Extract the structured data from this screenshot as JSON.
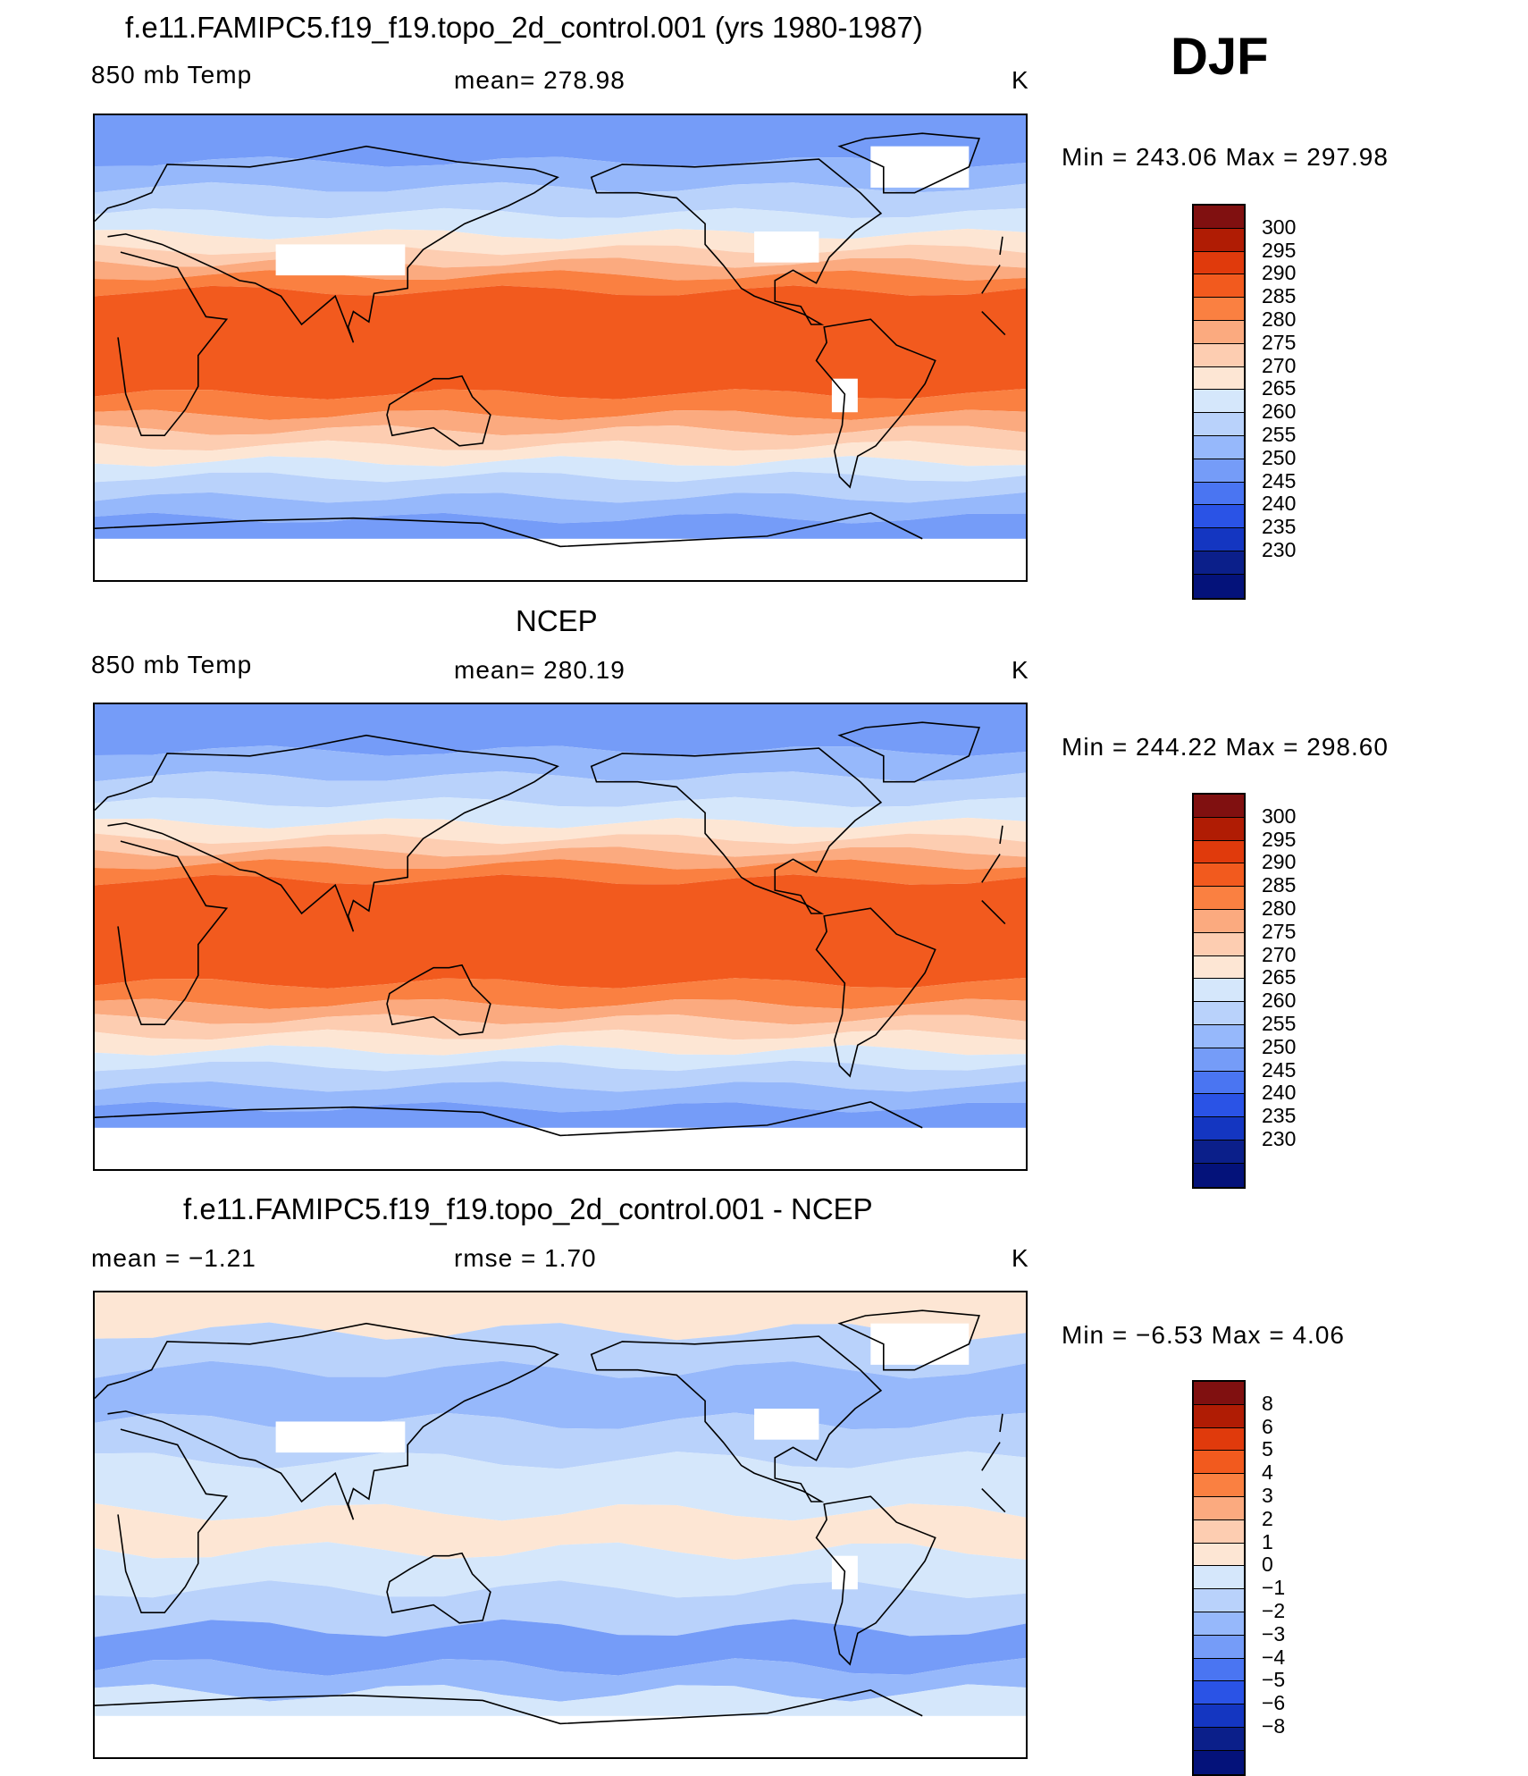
{
  "season": "DJF",
  "colors": {
    "abs": [
      "#801010",
      "#b01c04",
      "#e03a0c",
      "#f25a1e",
      "#fa8041",
      "#fbaa7f",
      "#fdcdb1",
      "#fde6d4",
      "#d5e7fb",
      "#b9d2fb",
      "#96b8fb",
      "#759cf8",
      "#4a75f2",
      "#2a53e6",
      "#1436c1",
      "#0b1f8a",
      "#04127a"
    ],
    "diff": [
      "#801010",
      "#b01c04",
      "#e03a0c",
      "#f25a1e",
      "#fa8041",
      "#fbaa7f",
      "#fdcdb1",
      "#fde6d4",
      "#d5e7fb",
      "#b9d2fb",
      "#96b8fb",
      "#759cf8",
      "#4a75f2",
      "#2a53e6",
      "#1436c1",
      "#0b1f8a",
      "#04127a"
    ]
  },
  "panels": [
    {
      "title": "f.e11.FAMIPC5.f19_f19.topo_2d_control.001 (yrs 1980-1987)",
      "left_label": "850 mb Temp",
      "stat_label": "mean=  278.98",
      "units": "K",
      "minmax": "Min  =  243.06  Max  =  297.98",
      "colorbar": "abs",
      "has_missing": true
    },
    {
      "title": "NCEP",
      "left_label": "850 mb Temp",
      "stat_label": "mean=  280.19",
      "units": "K",
      "minmax": "Min  =  244.22  Max  =  298.60",
      "colorbar": "abs",
      "has_missing": false
    },
    {
      "title": "f.e11.FAMIPC5.f19_f19.topo_2d_control.001 - NCEP",
      "left_label": "mean  =    −1.21",
      "stat_label": "rmse  =     1.70",
      "units": "K",
      "minmax": "Min  =    −6.53  Max  =     4.06",
      "colorbar": "diff",
      "has_missing": true
    }
  ],
  "colorbar_labels": {
    "abs": [
      "300",
      "295",
      "290",
      "285",
      "280",
      "275",
      "270",
      "265",
      "260",
      "255",
      "250",
      "245",
      "240",
      "235",
      "230"
    ],
    "diff": [
      "8",
      "6",
      "5",
      "4",
      "3",
      "2",
      "1",
      "0",
      "−1",
      "−2",
      "−3",
      "−4",
      "−5",
      "−6",
      "−8"
    ]
  }
}
